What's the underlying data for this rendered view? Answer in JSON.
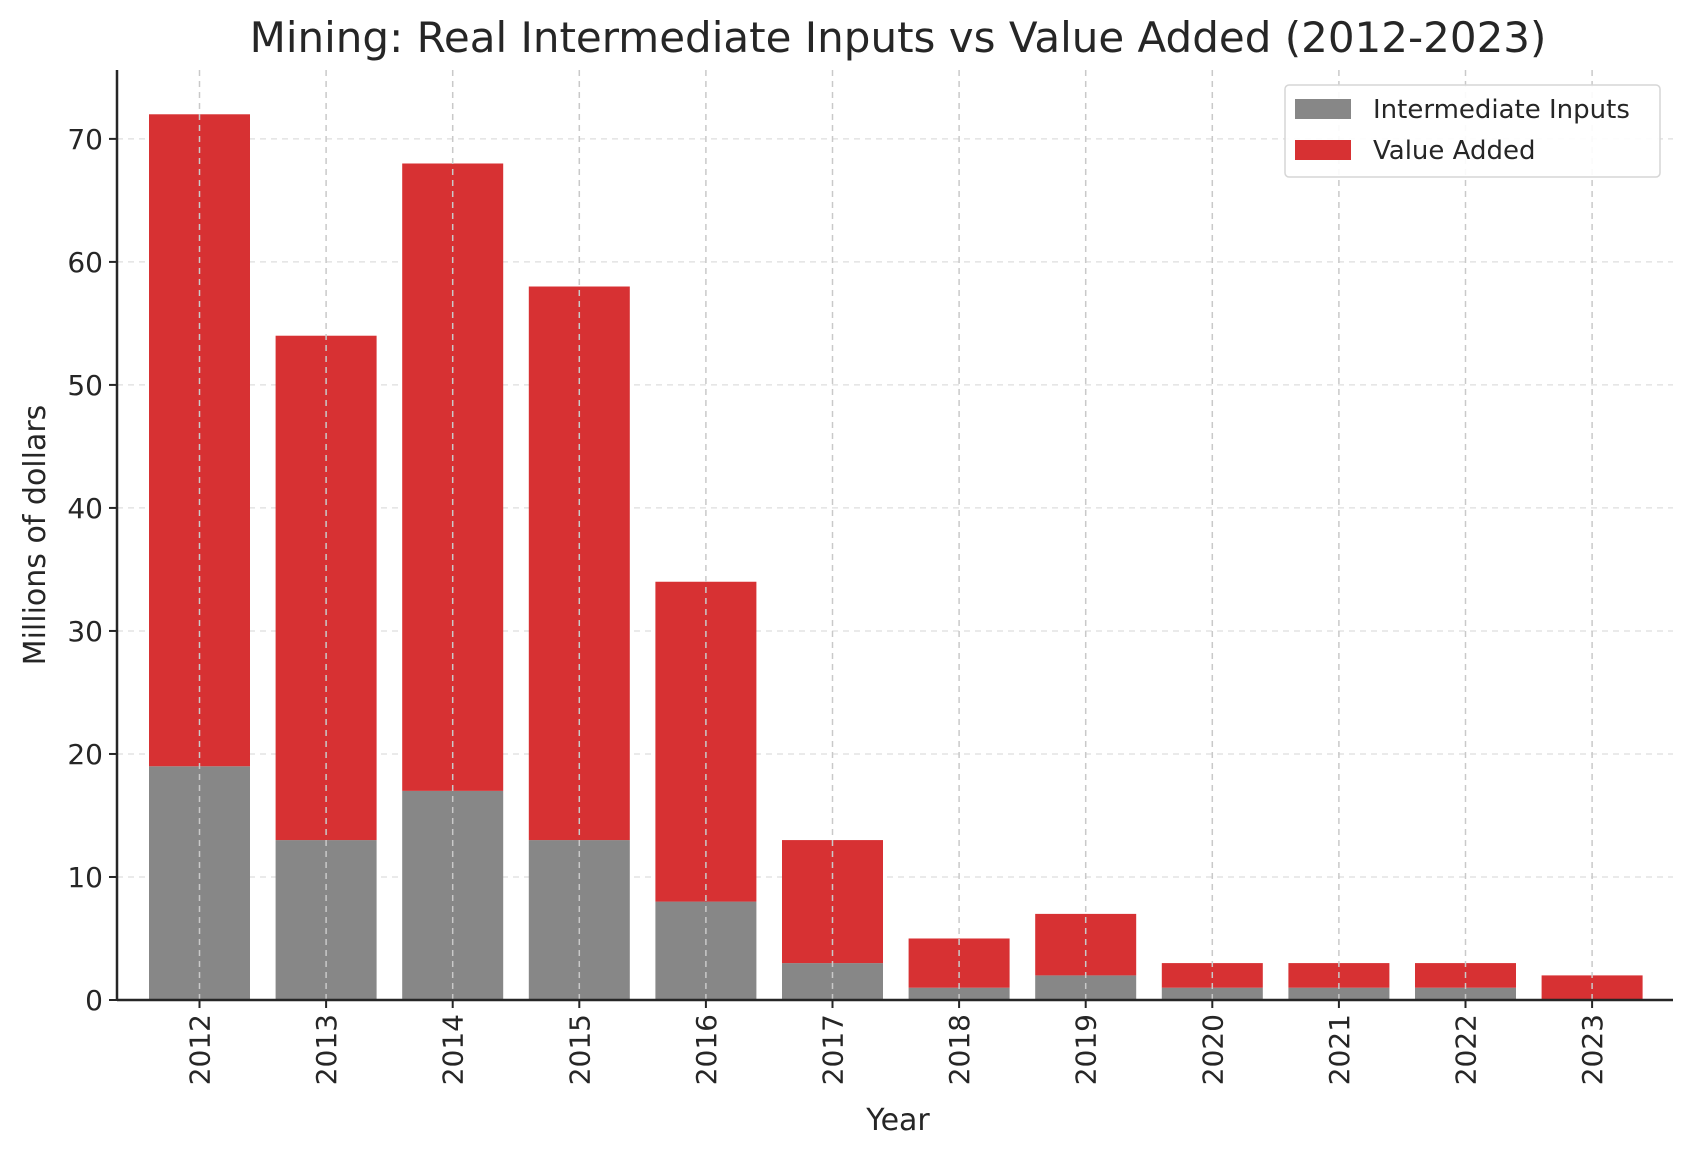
{
  "chart_data": {
    "type": "bar",
    "stacked": true,
    "title": "Mining: Real Intermediate Inputs vs Value Added (2012-2023)",
    "xlabel": "Year",
    "ylabel": "Millions of dollars",
    "categories": [
      "2012",
      "2013",
      "2014",
      "2015",
      "2016",
      "2017",
      "2018",
      "2019",
      "2020",
      "2021",
      "2022",
      "2023"
    ],
    "series": [
      {
        "name": "Intermediate Inputs",
        "color": "#878787",
        "values": [
          19,
          13,
          17,
          13,
          8,
          3,
          1,
          2,
          1,
          1,
          1,
          0
        ]
      },
      {
        "name": "Value Added",
        "color": "#d73133",
        "values": [
          53,
          41,
          51,
          45,
          26,
          10,
          4,
          5,
          2,
          2,
          2,
          2
        ]
      }
    ],
    "ylim": [
      0,
      75.6
    ],
    "yticks": [
      0,
      10,
      20,
      30,
      40,
      50,
      60,
      70
    ],
    "grid": true,
    "legend_position": "top-right"
  }
}
